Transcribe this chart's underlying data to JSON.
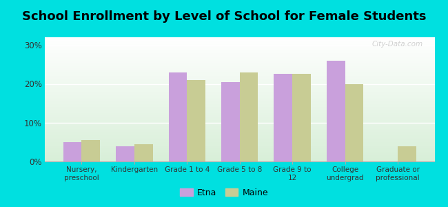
{
  "title": "School Enrollment by Level of School for Female Students",
  "categories": [
    "Nursery,\npreschool",
    "Kindergarten",
    "Grade 1 to 4",
    "Grade 5 to 8",
    "Grade 9 to\n12",
    "College\nundergrad",
    "Graduate or\nprofessional"
  ],
  "etna_values": [
    5,
    4,
    23,
    20.5,
    22.5,
    26,
    0
  ],
  "maine_values": [
    5.5,
    4.5,
    21,
    23,
    22.5,
    20,
    4
  ],
  "etna_color": "#c9a0dc",
  "maine_color": "#c8cc94",
  "background_outer": "#00e0e0",
  "background_inner_top": "#ffffff",
  "background_inner_bottom": "#d8efd8",
  "title_fontsize": 13,
  "ylim": [
    0,
    32
  ],
  "yticks": [
    0,
    10,
    20,
    30
  ],
  "ytick_labels": [
    "0%",
    "10%",
    "20%",
    "30%"
  ],
  "legend_labels": [
    "Etna",
    "Maine"
  ],
  "bar_width": 0.35,
  "watermark": "City-Data.com"
}
